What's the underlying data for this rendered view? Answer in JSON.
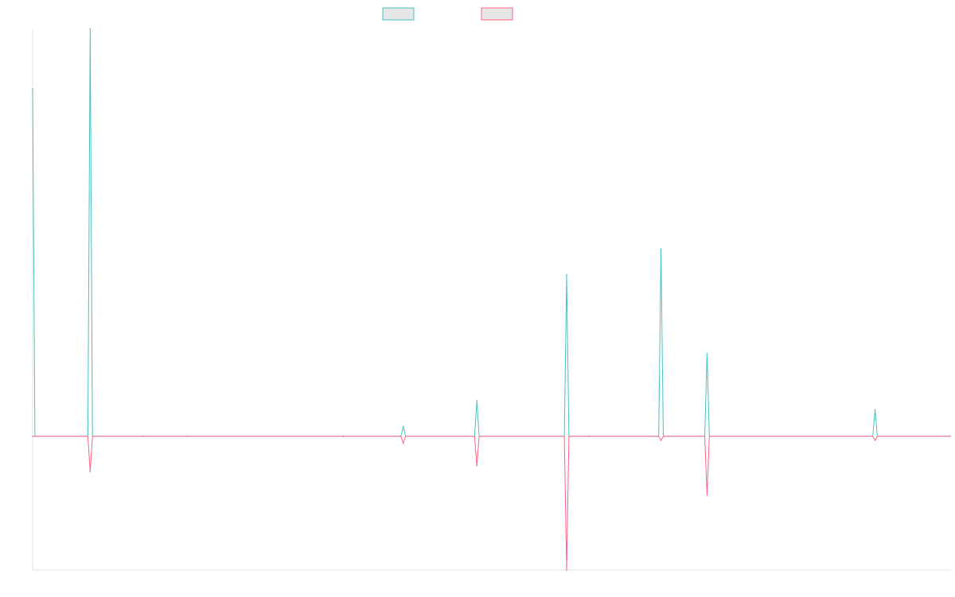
{
  "chart_data": {
    "type": "line",
    "title": "",
    "xlabel": "",
    "ylabel": "",
    "grid": false,
    "legend": {
      "placement": "top-center",
      "show_labels": false
    },
    "colors": {
      "series_1": "#4bc0c0",
      "series_2": "#ff6384",
      "swatch_fill": "#e6e6e6",
      "axis": "#e0e0e0"
    },
    "ylim": [
      -20,
      61
    ],
    "x": [
      0,
      1,
      2,
      3,
      4,
      5,
      6,
      7,
      8,
      9,
      10,
      11,
      12,
      13,
      14,
      15,
      16,
      17,
      18,
      19,
      20,
      21,
      22,
      23,
      24,
      25,
      26,
      27,
      28,
      29,
      30,
      31,
      32,
      33,
      34,
      35,
      36,
      37,
      38,
      39,
      40,
      41,
      42,
      43,
      44,
      45,
      46,
      47,
      48,
      49,
      50,
      51,
      52,
      53,
      54,
      55,
      56,
      57,
      58,
      59,
      60,
      61,
      62,
      63,
      64,
      65,
      66,
      67,
      68,
      69,
      70,
      71,
      72,
      73,
      74,
      75,
      76,
      77,
      78,
      79,
      80,
      81,
      82,
      83,
      84,
      85,
      86,
      87,
      88,
      89,
      90,
      91,
      92,
      93,
      94,
      95,
      96,
      97,
      98,
      99,
      100,
      101,
      102,
      103,
      104,
      105,
      106,
      107,
      108,
      109,
      110,
      111,
      112,
      113,
      114,
      115,
      116,
      117,
      118,
      119,
      120,
      121,
      122,
      123,
      124,
      125,
      126,
      127,
      128,
      129,
      130,
      131,
      132,
      133,
      134,
      135,
      136,
      137,
      138,
      139,
      140,
      141,
      142,
      143,
      144,
      145,
      146,
      147,
      148,
      149,
      150,
      151,
      152,
      153,
      154,
      155,
      156,
      157,
      158,
      159,
      160,
      161,
      162,
      163,
      164,
      165,
      166,
      167,
      168,
      169,
      170,
      171,
      172,
      173,
      174,
      175,
      176,
      177,
      178,
      179,
      180,
      181,
      182,
      183,
      184,
      185,
      186,
      187,
      188,
      189,
      190,
      191,
      192,
      193,
      194,
      195,
      196,
      197,
      198,
      199,
      200,
      201,
      202,
      203,
      204,
      205,
      206,
      207,
      208,
      209,
      210,
      211,
      212,
      213,
      214,
      215,
      216,
      217,
      218,
      219,
      220,
      221,
      222,
      223,
      224,
      225,
      226,
      227,
      228,
      229,
      230,
      231,
      232,
      233,
      234,
      235,
      236,
      237,
      238,
      239,
      240,
      241,
      242,
      243,
      244,
      245,
      246,
      247,
      248,
      249,
      250,
      251,
      252,
      253,
      254,
      255,
      256,
      257,
      258,
      259,
      260,
      261,
      262,
      263,
      264,
      265,
      266,
      267,
      268,
      269,
      270,
      271,
      272,
      273,
      274,
      275,
      276,
      277,
      278,
      279,
      280,
      281,
      282,
      283,
      284,
      285,
      286,
      287,
      288,
      289,
      290,
      291,
      292,
      293,
      294,
      295,
      296,
      297,
      298,
      299,
      300,
      301,
      302,
      303,
      304,
      305,
      306,
      307,
      308,
      309,
      310,
      311,
      312,
      313,
      314,
      315,
      316,
      317,
      318,
      319,
      320,
      321,
      322,
      323,
      324,
      325,
      326,
      327,
      328,
      329,
      330,
      331,
      332,
      333,
      334,
      335,
      336,
      337,
      338,
      339,
      340,
      341,
      342,
      343,
      344,
      345,
      346,
      347,
      348,
      349,
      350,
      351,
      352,
      353,
      354,
      355,
      356,
      357,
      358,
      359,
      360,
      361,
      362,
      363,
      364,
      365,
      366,
      367,
      368,
      369,
      370,
      371,
      372,
      373,
      374,
      375,
      376,
      377,
      378,
      379,
      380,
      381,
      382,
      383,
      384,
      385,
      386,
      387,
      388,
      389,
      390,
      391,
      392,
      393,
      394,
      395,
      396,
      397,
      398,
      399
    ],
    "spikes": [
      {
        "x": 0,
        "series_1": 52.0,
        "series_2": 0
      },
      {
        "x": 25,
        "series_1": 61.0,
        "series_2": -5.3
      },
      {
        "x": 48,
        "series_1": 0.0,
        "series_2": 0
      },
      {
        "x": 67,
        "series_1": 0.0,
        "series_2": 0
      },
      {
        "x": 135,
        "series_1": 0.0,
        "series_2": 0
      },
      {
        "x": 161,
        "series_1": 1.5,
        "series_2": -1.0
      },
      {
        "x": 193,
        "series_1": 5.3,
        "series_2": -4.4
      },
      {
        "x": 232,
        "series_1": 24.2,
        "series_2": -20.0
      },
      {
        "x": 242,
        "series_1": 0.0,
        "series_2": 0
      },
      {
        "x": 273,
        "series_1": 28.0,
        "series_2": -0.6
      },
      {
        "x": 293,
        "series_1": 12.4,
        "series_2": -8.8
      },
      {
        "x": 366,
        "series_1": 4.0,
        "series_2": -0.6
      }
    ],
    "series": [
      {
        "key": "series_1",
        "color": "#4bc0c0"
      },
      {
        "key": "series_2",
        "color": "#ff6384"
      }
    ]
  }
}
